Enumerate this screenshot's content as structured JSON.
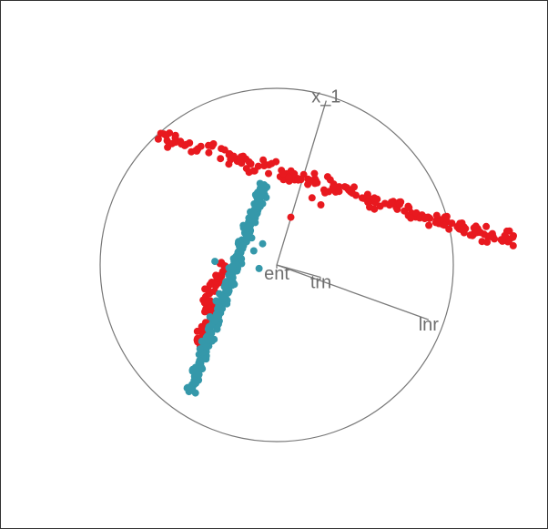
{
  "chart_data": {
    "type": "scatter",
    "title": "",
    "xlabel": "",
    "ylabel": "",
    "grid": false,
    "legend": "none",
    "xlim": [
      -1,
      1
    ],
    "ylim": [
      -1,
      1
    ],
    "projection_axes": [
      {
        "label": "x_1",
        "x": 0.28,
        "y": 0.93
      },
      {
        "label": "ent",
        "x": 0.0,
        "y": -0.02
      },
      {
        "label": "trn",
        "x": 0.25,
        "y": -0.07
      },
      {
        "label": "lnr",
        "x": 0.86,
        "y": -0.31
      }
    ],
    "series": [
      {
        "color": "#e8191f",
        "segments": [
          {
            "from": [
              -0.67,
              0.73
            ],
            "to": [
              1.35,
              0.13
            ],
            "n": 210,
            "spread": 0.022
          },
          {
            "from": [
              -0.4,
              -0.22
            ],
            "to": [
              -0.3,
              0.02
            ],
            "n": 32,
            "spread": 0.018
          },
          {
            "from": [
              -0.45,
              -0.47
            ],
            "to": [
              -0.38,
              -0.24
            ],
            "n": 24,
            "spread": 0.016
          }
        ],
        "points": [
          [
            0.08,
            0.27
          ],
          [
            0.25,
            0.34
          ],
          [
            0.2,
            0.38
          ]
        ]
      },
      {
        "color": "#3598aa",
        "segments": [
          {
            "from": [
              -0.49,
              -0.72
            ],
            "to": [
              -0.07,
              0.46
            ],
            "n": 300,
            "spread": 0.014
          }
        ],
        "points": [
          [
            -0.08,
            0.12
          ],
          [
            -0.13,
            0.08
          ],
          [
            -0.35,
            0.02
          ],
          [
            -0.24,
            -0.11
          ],
          [
            -0.1,
            -0.02
          ],
          [
            -0.44,
            -0.62
          ],
          [
            -0.46,
            -0.58
          ]
        ]
      }
    ]
  },
  "colors": {
    "circle": "#777777",
    "axes": "#7a7a7a",
    "text": "#6e6e6e"
  }
}
